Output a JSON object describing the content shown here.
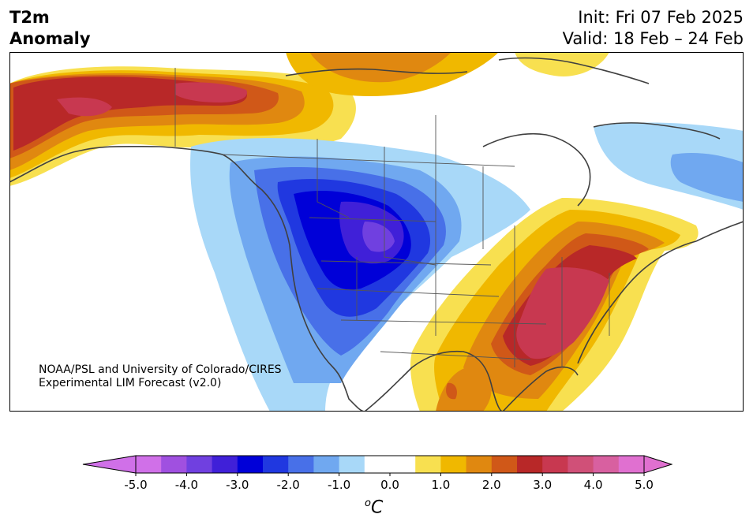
{
  "title": {
    "line1": "T2m",
    "line2": "Anomaly"
  },
  "info": {
    "init": "Init: Fri 07 Feb 2025",
    "valid": "Valid: 18 Feb – 24 Feb"
  },
  "credit": {
    "line1": "NOAA/PSL and University of Colorado/CIRES",
    "line2": "Experimental LIM Forecast (v2.0)"
  },
  "colorbar": {
    "unit_base": "C",
    "unit_sup": "o",
    "ticks": [
      "-5.0",
      "-4.0",
      "-3.0",
      "-2.0",
      "-1.0",
      "0.0",
      "1.0",
      "2.0",
      "3.0",
      "4.0",
      "5.0"
    ],
    "colors": [
      "#d070e8",
      "#a050e0",
      "#7040e0",
      "#4020d8",
      "#0000d8",
      "#2038e0",
      "#4870e8",
      "#70a8f0",
      "#a8d8f8",
      "#ffffff",
      "#ffffff",
      "#f8e050",
      "#f0b800",
      "#e08810",
      "#d05818",
      "#b82828",
      "#c83850",
      "#d05078",
      "#d860a0",
      "#e070d0"
    ]
  },
  "map": {
    "land_color": "#ffffff",
    "border_color": "#404040"
  }
}
